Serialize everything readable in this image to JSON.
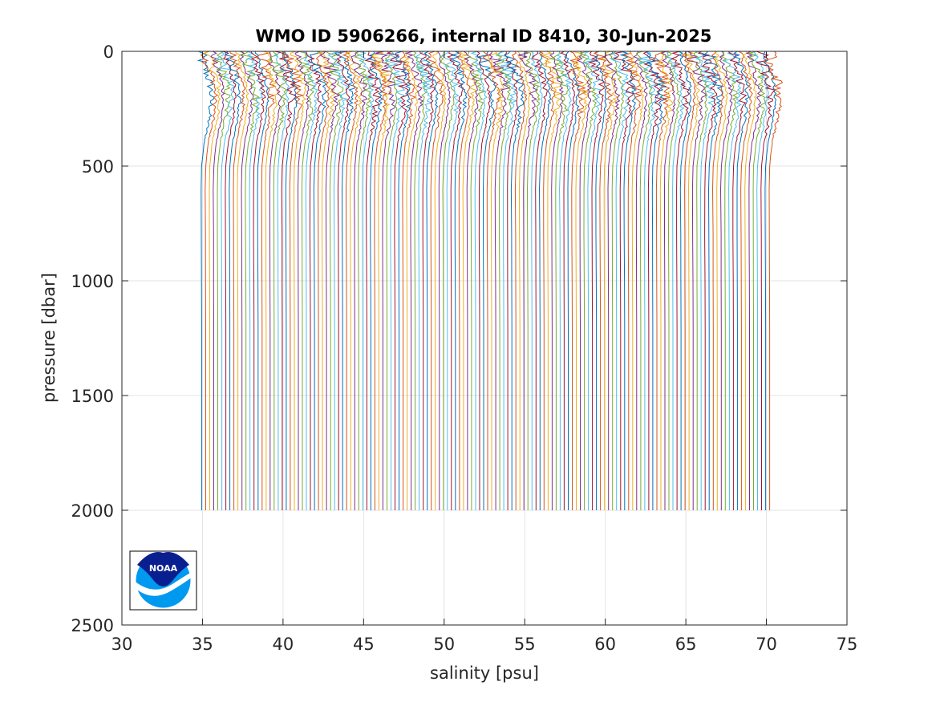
{
  "chart_data": {
    "type": "line",
    "title": "WMO ID 5906266, internal ID 8410, 30-Jun-2025",
    "xlabel": "salinity [psu]",
    "ylabel": "pressure [dbar]",
    "xlim": [
      30,
      75
    ],
    "ylim": [
      0,
      2500
    ],
    "y_reversed": true,
    "grid": true,
    "xticks": [
      30,
      35,
      40,
      45,
      50,
      55,
      60,
      65,
      70,
      75
    ],
    "yticks": [
      0,
      500,
      1000,
      1500,
      2000,
      2500
    ],
    "profile_offset": 0.25,
    "profile_count": 142,
    "series_colors": [
      "#0072BD",
      "#D95319",
      "#EDB120",
      "#7E2F8E",
      "#77AC30",
      "#4DBEEE",
      "#A2142F"
    ],
    "base_profile": {
      "pressure": [
        0,
        50,
        100,
        150,
        200,
        250,
        300,
        350,
        400,
        500,
        600,
        800,
        1000,
        1200,
        1400,
        1600,
        1800,
        2000
      ],
      "salinity": [
        34.9,
        35.0,
        35.3,
        35.5,
        35.55,
        35.5,
        35.4,
        35.25,
        35.1,
        34.95,
        34.92,
        34.93,
        34.94,
        34.95,
        34.95,
        34.95,
        34.95,
        34.95
      ]
    }
  },
  "logo": {
    "text": "NOAA",
    "icon": "noaa-logo-icon",
    "dark_blue": "#0A1F8F",
    "light_blue": "#0099F0"
  }
}
